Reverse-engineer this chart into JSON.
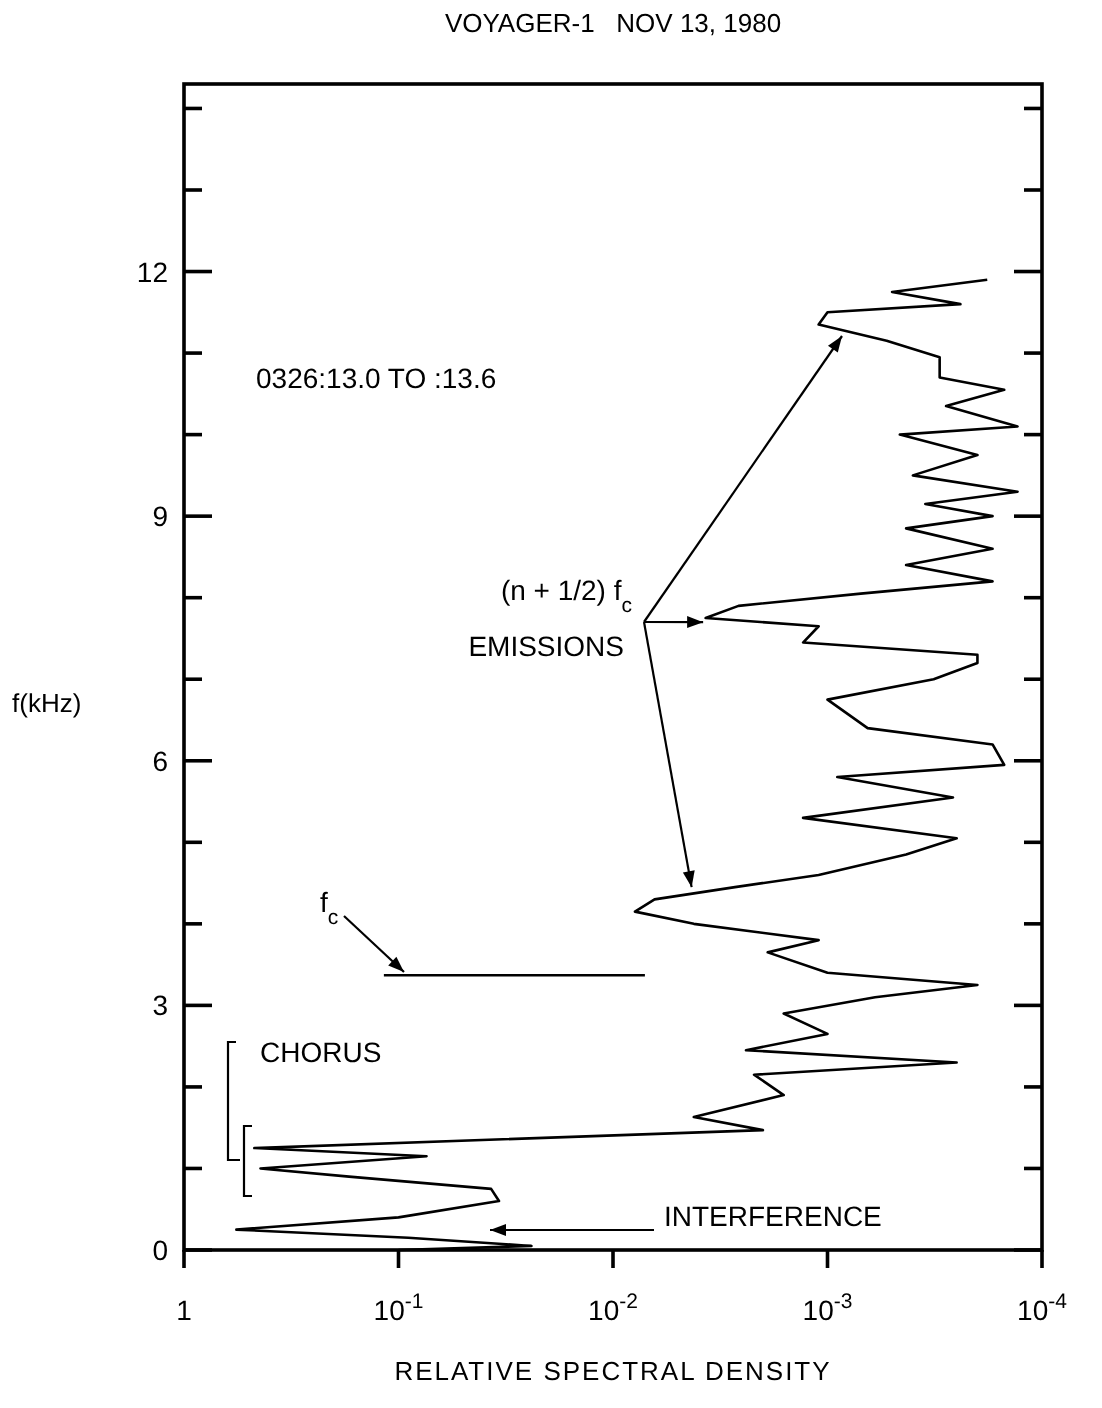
{
  "chart_data": {
    "type": "line",
    "title": "VOYAGER-1   NOV 13, 1980",
    "xlabel": "RELATIVE SPECTRAL DENSITY",
    "ylabel": "f(kHz)",
    "log": "x",
    "xlim": [
      1,
      0.0001
    ],
    "xticks": [
      1,
      {
        "value": 0.1,
        "label": "10$^{-1}$"
      },
      {
        "value": 0.01,
        "label": "10$^{-2}$"
      },
      {
        "value": 0.001,
        "label": "10$^{-3}$"
      },
      {
        "value": 0.0001,
        "label": "10$^{-4}$"
      }
    ],
    "ylim": [
      0,
      14.3
    ],
    "yticks": [
      0,
      {
        "value": 1,
        "label": null
      },
      {
        "value": 2,
        "label": null
      },
      3,
      {
        "value": 4,
        "label": null
      },
      {
        "value": 5,
        "label": null
      },
      6,
      {
        "value": 7,
        "label": null
      },
      {
        "value": 8,
        "label": null
      },
      9,
      {
        "value": 10,
        "label": null
      },
      {
        "value": 11,
        "label": null
      },
      12,
      {
        "value": 13,
        "label": null
      },
      {
        "value": 14,
        "label": null
      }
    ],
    "annotations": [
      "0326:13.0 TO :13.6",
      {
        "text": "(n + 1/2) f$_{c}$",
        "x": 0.0038,
        "y": 7.7
      },
      {
        "text": "EMISSIONS",
        "x": 0.0043,
        "y": 4.45
      },
      "f$_{c}$",
      "CHORUS",
      "INTERFERENCE"
    ],
    "series": [
      {
        "color": "#000000",
        "x": [
          0.1,
          0.024,
          0.09,
          0.57,
          0.1,
          0.034,
          0.037,
          0.17,
          0.44,
          0.074,
          0.47,
          0.002,
          0.0042,
          0.0016,
          0.0022,
          0.00025,
          0.0024,
          0.001,
          0.0016,
          0.0006,
          0.0002,
          0.001,
          0.0019,
          0.0011,
          0.0042,
          0.0079,
          0.0064,
          0.0027,
          0.0011,
          0.00043,
          0.00025,
          0.0013,
          0.00026,
          0.0009,
          0.00015,
          0.00017,
          0.00065,
          0.001,
          0.00032,
          0.0002,
          0.0002,
          0.0013,
          0.0011,
          0.0037,
          0.0026,
          0.0007,
          0.00017,
          0.00043,
          0.00017,
          0.00043,
          0.00017,
          0.00035,
          0.00013,
          0.0004,
          0.0002,
          0.00046,
          0.00013,
          0.00028,
          0.00015,
          0.0003,
          0.0003,
          0.00053,
          0.0011,
          0.001,
          0.00024,
          0.0005,
          0.00018
        ],
        "values": [
          0,
          0.05,
          0.15,
          0.25,
          0.4,
          0.6,
          0.75,
          0.9,
          1.0,
          1.15,
          1.25,
          1.47,
          1.63,
          1.9,
          2.15,
          2.3,
          2.45,
          2.65,
          2.9,
          3.1,
          3.25,
          3.4,
          3.65,
          3.8,
          4.0,
          4.15,
          4.3,
          4.45,
          4.6,
          4.85,
          5.05,
          5.3,
          5.55,
          5.8,
          5.95,
          6.2,
          6.4,
          6.75,
          7.0,
          7.2,
          7.3,
          7.45,
          7.65,
          7.75,
          7.9,
          8.05,
          8.2,
          8.4,
          8.6,
          8.85,
          9.0,
          9.15,
          9.3,
          9.5,
          9.75,
          10.0,
          10.1,
          10.35,
          10.55,
          10.7,
          10.95,
          11.15,
          11.35,
          11.5,
          11.6,
          11.75,
          11.9
        ]
      },
      {
        "color": "#000000",
        "x": [
          0.117,
          0.0071
        ],
        "values": [
          3.37,
          3.37
        ]
      }
    ]
  }
}
